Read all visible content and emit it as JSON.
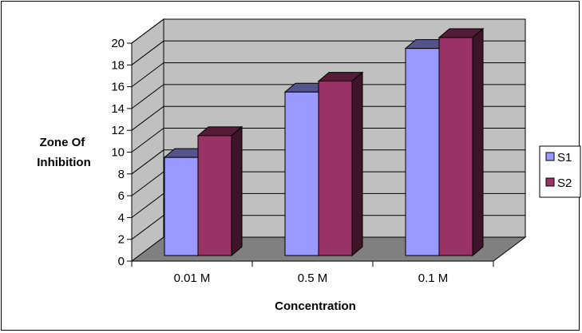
{
  "chart_data": {
    "type": "bar",
    "categories": [
      "0.01 M",
      "0.5 M",
      "0.1 M"
    ],
    "series": [
      {
        "name": "S1",
        "values": [
          9,
          15,
          19
        ],
        "color": "#9999ff"
      },
      {
        "name": "S2",
        "values": [
          11,
          16,
          20
        ],
        "color": "#993366"
      }
    ],
    "ylabel_lines": [
      "Zone Of",
      "Inhibition"
    ],
    "xlabel": "Concentration",
    "ylim": [
      0,
      20
    ],
    "yticks": [
      "0",
      "2",
      "4",
      "6",
      "8",
      "10",
      "12",
      "14",
      "16",
      "18",
      "20"
    ],
    "grid": true,
    "legend_position": "right",
    "style": "3d-clustered",
    "colors": {
      "wall": "#c0c0c0",
      "floor": "#808080"
    }
  }
}
